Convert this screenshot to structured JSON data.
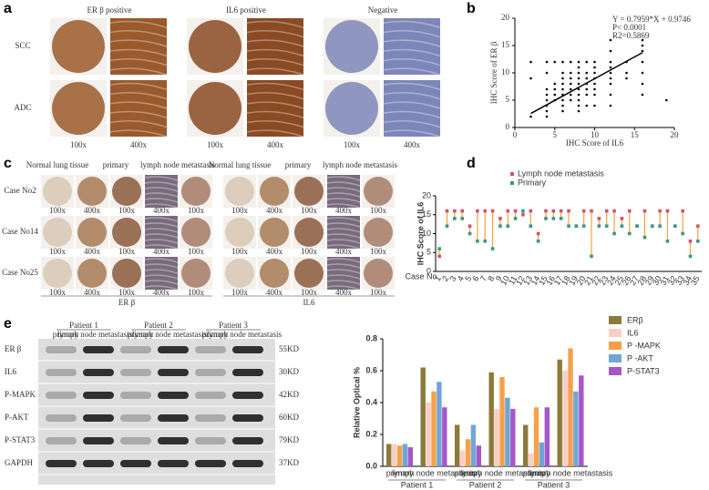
{
  "panel_labels": [
    "a",
    "b",
    "c",
    "d",
    "e"
  ],
  "panel_a": {
    "columns": [
      "ER β positive",
      "IL6 positive",
      "Negative"
    ],
    "rows": [
      "SCC",
      "ADC"
    ],
    "magnifications": [
      "100x",
      "400x"
    ]
  },
  "panel_c": {
    "columns": [
      "Normal lung tissue",
      "primary",
      "lymph node metastasis"
    ],
    "rows": [
      "Case No2",
      "Case No14",
      "Case No25"
    ],
    "groups": [
      "ER β",
      "IL6"
    ],
    "magnifications": [
      "100x",
      "400x"
    ]
  },
  "panel_e_blot": {
    "patients": [
      "Patient 1",
      "Patient 2",
      "Patient 3"
    ],
    "lanes": [
      "primary",
      "lymph node metastasis"
    ],
    "proteins": [
      "ER β",
      "IL6",
      "P-MAPK",
      "P-AKT",
      "P-STAT3",
      "GAPDH"
    ],
    "sizes": [
      "55KD",
      "30KD",
      "42KD",
      "60KD",
      "79KD",
      "37KD"
    ]
  },
  "chart_data": [
    {
      "type": "scatter",
      "x_label": "IHC Score of IL6",
      "y_label": "IHC Score of ER β",
      "annotations": [
        "Y = 0.7959*X + 0.9746",
        "P< 0.0001",
        "R2=0.5869"
      ],
      "color": "#000000",
      "x": [
        2,
        2,
        2,
        4,
        4,
        4,
        4,
        4,
        4,
        4,
        4,
        5,
        5,
        5,
        5,
        5,
        6,
        6,
        6,
        6,
        6,
        6,
        6,
        6,
        6,
        7,
        7,
        7,
        7,
        7,
        7,
        7,
        8,
        8,
        8,
        8,
        8,
        8,
        8,
        8,
        8,
        8,
        9,
        9,
        9,
        9,
        9,
        9,
        9,
        10,
        10,
        10,
        10,
        10,
        10,
        10,
        10,
        12,
        12,
        12,
        12,
        12,
        12,
        12,
        12,
        12,
        14,
        14,
        14,
        16,
        16,
        16,
        16,
        16,
        16,
        16,
        19
      ],
      "y": [
        12,
        9,
        2,
        12,
        10,
        7,
        6,
        5,
        4,
        3,
        2,
        12,
        8,
        7,
        6,
        5,
        12,
        10,
        9,
        8,
        7,
        6,
        5,
        4,
        3,
        12,
        10,
        9,
        8,
        7,
        6,
        5,
        12,
        11,
        10,
        9,
        8,
        7,
        6,
        5,
        4,
        3,
        12,
        10,
        9,
        8,
        7,
        6,
        4,
        12,
        11,
        10,
        9,
        8,
        7,
        6,
        4,
        16,
        14,
        12,
        11,
        10,
        9,
        8,
        6,
        4,
        12,
        10,
        9,
        16,
        15,
        14,
        12,
        10,
        8,
        6,
        5
      ],
      "fit": {
        "x": [
          2,
          16
        ],
        "y": [
          2.57,
          13.71
        ]
      },
      "fit_color": "#000000",
      "xlim": [
        0,
        20
      ],
      "ylim": [
        0,
        20
      ],
      "xticks": [
        0,
        5,
        10,
        15,
        20
      ],
      "yticks": [
        0,
        5,
        10,
        15,
        20
      ]
    },
    {
      "type": "dot",
      "y_label": "IHC Score of IL6",
      "x_label": "Case No",
      "connector_color": "#f2a33a",
      "categories": [
        "1",
        "2",
        "3",
        "4",
        "5",
        "6",
        "7",
        "8",
        "9",
        "10",
        "11",
        "12",
        "13",
        "14",
        "15",
        "16",
        "17",
        "18",
        "19",
        "20",
        "21",
        "22",
        "23",
        "24",
        "25",
        "26",
        "27",
        "28",
        "29",
        "30",
        "31",
        "32",
        "33",
        "34",
        "35"
      ],
      "series": [
        {
          "name": "Lymph node metastasis",
          "color": "#d6506a",
          "values": [
            4,
            16,
            16,
            16,
            12,
            16,
            16,
            16,
            14,
            16,
            16,
            15,
            16,
            10,
            16,
            16,
            16,
            16,
            12,
            16,
            16,
            14,
            16,
            16,
            14,
            16,
            12,
            16,
            12,
            16,
            16,
            12,
            16,
            8,
            12
          ]
        },
        {
          "name": "Primary",
          "color": "#3b9787",
          "values": [
            6,
            12,
            14,
            14,
            10,
            8,
            8,
            6,
            12,
            12,
            14,
            16,
            12,
            8,
            14,
            14,
            14,
            12,
            12,
            12,
            4,
            12,
            12,
            10,
            12,
            10,
            12,
            9,
            12,
            12,
            8,
            12,
            10,
            4,
            8
          ]
        }
      ],
      "ylim": [
        0,
        20
      ],
      "yticks": [
        0,
        5,
        10,
        15,
        20
      ]
    },
    {
      "type": "bar",
      "y_label": "Relative Optical %",
      "categories": [
        "primary",
        "lymph node metastasis",
        "primary",
        "lymph node metastasis",
        "primary",
        "lymph node metastasis"
      ],
      "groups": [
        "Patient 1",
        "Patient 2",
        "Patient 3"
      ],
      "series": [
        {
          "name": "ERβ",
          "color": "#8b7a3a",
          "values": [
            0.14,
            0.62,
            0.26,
            0.59,
            0.26,
            0.67
          ]
        },
        {
          "name": "IL6",
          "color": "#f7cfc6",
          "values": [
            0.14,
            0.4,
            0.1,
            0.36,
            0.08,
            0.6
          ]
        },
        {
          "name": "P -MAPK",
          "color": "#f5a04a",
          "values": [
            0.13,
            0.47,
            0.17,
            0.56,
            0.37,
            0.74
          ]
        },
        {
          "name": "P -AKT",
          "color": "#6fa5d8",
          "values": [
            0.14,
            0.53,
            0.26,
            0.43,
            0.15,
            0.47
          ]
        },
        {
          "name": "P-STAT3",
          "color": "#a557c9",
          "values": [
            0.12,
            0.37,
            0.13,
            0.36,
            0.37,
            0.57
          ]
        }
      ],
      "ylim": [
        0,
        0.8
      ],
      "yticks": [
        {
          "value": 0,
          "label": "0.0"
        },
        {
          "value": 0.2,
          "label": "0.2"
        },
        {
          "value": 0.4,
          "label": "0.4"
        },
        {
          "value": 0.6,
          "label": "0.6"
        },
        {
          "value": 0.8,
          "label": "0.8"
        }
      ]
    }
  ]
}
